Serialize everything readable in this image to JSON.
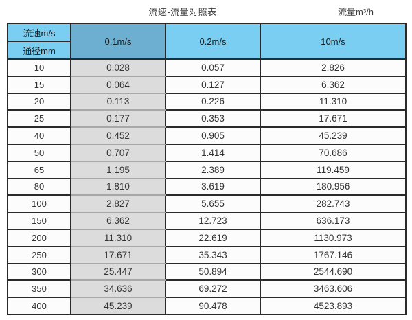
{
  "header": {
    "title": "流速-流量对照表",
    "unit_label": "流量m³/h"
  },
  "table": {
    "corner_top": "流速m/s",
    "corner_bottom": "通径mm",
    "velocity_columns": [
      "0.1m/s",
      "0.2m/s",
      "10m/s"
    ],
    "rows": [
      {
        "diameter": "10",
        "values": [
          "0.028",
          "0.057",
          "2.826"
        ]
      },
      {
        "diameter": "15",
        "values": [
          "0.064",
          "0.127",
          "6.362"
        ]
      },
      {
        "diameter": "20",
        "values": [
          "0.113",
          "0.226",
          "11.310"
        ]
      },
      {
        "diameter": "25",
        "values": [
          "0.177",
          "0.353",
          "17.671"
        ]
      },
      {
        "diameter": "40",
        "values": [
          "0.452",
          "0.905",
          "45.239"
        ]
      },
      {
        "diameter": "50",
        "values": [
          "0.707",
          "1.414",
          "70.686"
        ]
      },
      {
        "diameter": "65",
        "values": [
          "1.195",
          "2.389",
          "119.459"
        ]
      },
      {
        "diameter": "80",
        "values": [
          "1.810",
          "3.619",
          "180.956"
        ]
      },
      {
        "diameter": "100",
        "values": [
          "2.827",
          "5.655",
          "282.743"
        ]
      },
      {
        "diameter": "150",
        "values": [
          "6.362",
          "12.723",
          "636.173"
        ]
      },
      {
        "diameter": "200",
        "values": [
          "11.310",
          "22.619",
          "1130.973"
        ]
      },
      {
        "diameter": "250",
        "values": [
          "17.671",
          "35.343",
          "1767.146"
        ]
      },
      {
        "diameter": "300",
        "values": [
          "25.447",
          "50.894",
          "2544.690"
        ]
      },
      {
        "diameter": "350",
        "values": [
          "34.636",
          "69.272",
          "3463.606"
        ]
      },
      {
        "diameter": "400",
        "values": [
          "45.239",
          "90.478",
          "4523.893"
        ]
      }
    ]
  },
  "colors": {
    "header_blue": "#79cef1",
    "header_blue_dark": "#6cafd1",
    "highlight_column_gray": "#dcdcdc",
    "border_dark": "#2a2a2a",
    "gray_column_inner_border": "#a8a8a8"
  },
  "chart_data": {
    "type": "table",
    "title": "流速-流量对照表",
    "value_unit": "流量m³/h",
    "row_header": "通径mm",
    "column_header": "流速m/s",
    "categories": [
      10,
      15,
      20,
      25,
      40,
      50,
      65,
      80,
      100,
      150,
      200,
      250,
      300,
      350,
      400
    ],
    "series": [
      {
        "name": "0.1m/s",
        "values": [
          0.028,
          0.064,
          0.113,
          0.177,
          0.452,
          0.707,
          1.195,
          1.81,
          2.827,
          6.362,
          11.31,
          17.671,
          25.447,
          34.636,
          45.239
        ]
      },
      {
        "name": "0.2m/s",
        "values": [
          0.057,
          0.127,
          0.226,
          0.353,
          0.905,
          1.414,
          2.389,
          3.619,
          5.655,
          12.723,
          22.619,
          35.343,
          50.894,
          69.272,
          90.478
        ]
      },
      {
        "name": "10m/s",
        "values": [
          2.826,
          6.362,
          11.31,
          17.671,
          45.239,
          70.686,
          119.459,
          180.956,
          282.743,
          636.173,
          1130.973,
          1767.146,
          2544.69,
          3463.606,
          4523.893
        ]
      }
    ]
  }
}
